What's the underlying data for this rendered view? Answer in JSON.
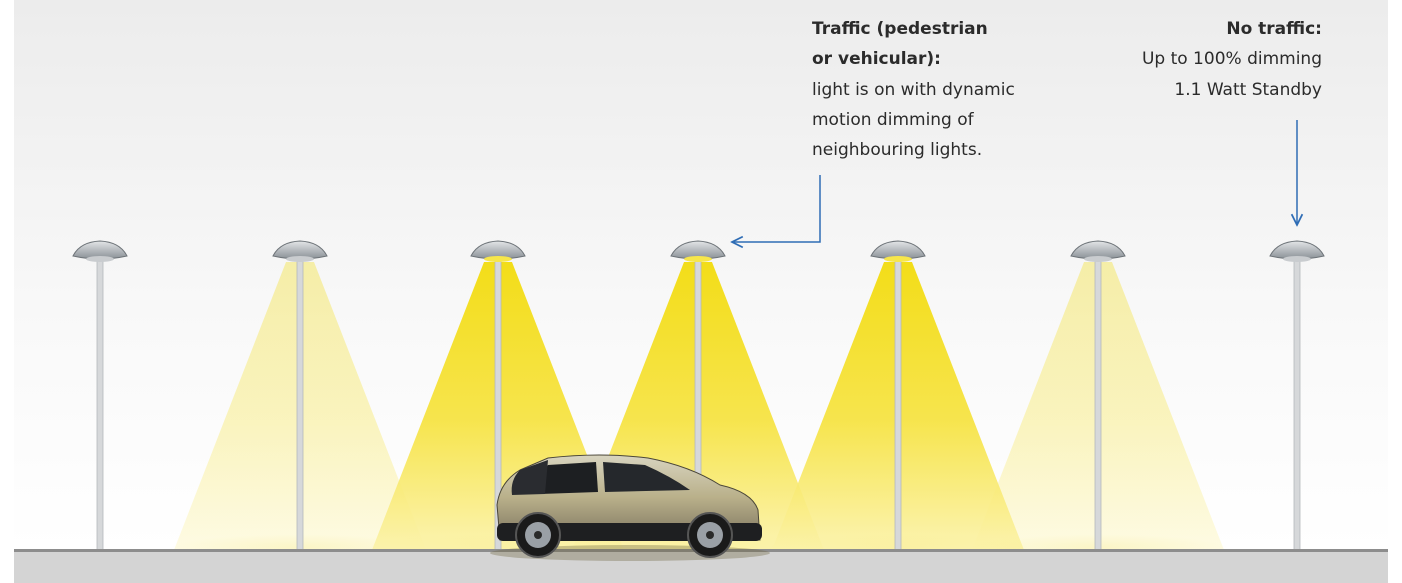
{
  "annotations": {
    "traffic": {
      "title_lines": [
        "Traffic (pedestrian",
        "or vehicular):"
      ],
      "body_lines": [
        "light is on with dynamic",
        "motion dimming of",
        "neighbouring lights."
      ]
    },
    "no_traffic": {
      "title_lines": [
        "No traffic:"
      ],
      "body_lines": [
        "Up to 100% dimming",
        "1.1 Watt Standby"
      ]
    }
  }
}
